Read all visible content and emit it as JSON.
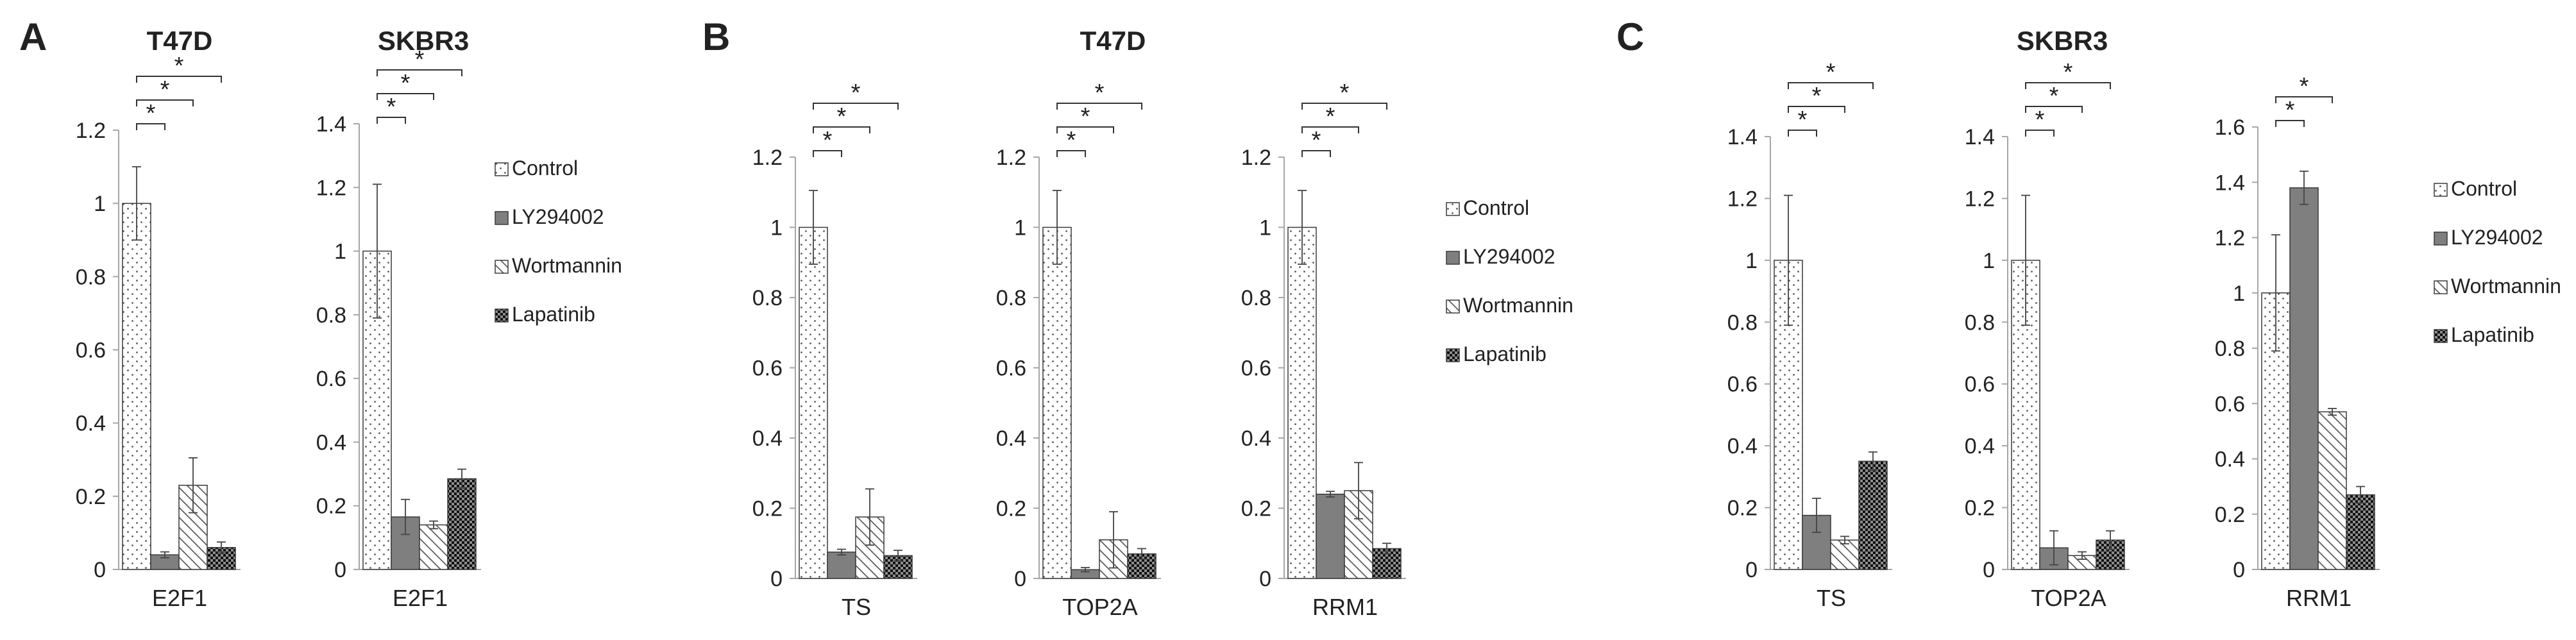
{
  "colors": {
    "axis": "#a6a6a6",
    "bar_outline": "#3a3a3a",
    "dots": "#595959",
    "ly294002": "#7f7f7f",
    "hatch": "#5a5a5a",
    "lapatinib": "#111111"
  },
  "legend_labels": [
    "Control",
    "LY294002",
    "Wortmannin",
    "Lapatinib"
  ],
  "panels": {
    "A": {
      "letter": "A",
      "titles": [
        "T47D",
        "SKBR3"
      ]
    },
    "B": {
      "letter": "B",
      "titles": [
        "T47D"
      ]
    },
    "C": {
      "letter": "C",
      "titles": [
        "SKBR3"
      ]
    }
  },
  "chart_data": [
    {
      "type": "bar",
      "panel": "A",
      "title": "T47D",
      "xlabel": "E2F1",
      "ylim": [
        0,
        1.2
      ],
      "yticks": [
        "0",
        "0.2",
        "0.4",
        "0.6",
        "0.8",
        "1",
        "1.2"
      ],
      "series": [
        {
          "name": "Control",
          "value": 1.0,
          "error": 0.1
        },
        {
          "name": "LY294002",
          "value": 0.04,
          "error": 0.008
        },
        {
          "name": "Wortmannin",
          "value": 0.23,
          "error": 0.075
        },
        {
          "name": "Lapatinib",
          "value": 0.06,
          "error": 0.015
        }
      ],
      "significance": [
        "*",
        "*",
        "*"
      ]
    },
    {
      "type": "bar",
      "panel": "A",
      "title": "SKBR3",
      "xlabel": "E2F1",
      "ylim": [
        0,
        1.4
      ],
      "yticks": [
        "0",
        "0.2",
        "0.4",
        "0.6",
        "0.8",
        "1",
        "1.2",
        "1.4"
      ],
      "series": [
        {
          "name": "Control",
          "value": 1.0,
          "error": 0.21
        },
        {
          "name": "LY294002",
          "value": 0.165,
          "error": 0.055
        },
        {
          "name": "Wortmannin",
          "value": 0.14,
          "error": 0.012
        },
        {
          "name": "Lapatinib",
          "value": 0.285,
          "error": 0.03
        }
      ],
      "significance": [
        "*",
        "*",
        "*"
      ]
    },
    {
      "type": "bar",
      "panel": "B",
      "xlabel": "TS",
      "ylim": [
        0,
        1.2
      ],
      "yticks": [
        "0",
        "0.2",
        "0.4",
        "0.6",
        "0.8",
        "1",
        "1.2"
      ],
      "series": [
        {
          "name": "Control",
          "value": 1.0,
          "error": 0.105
        },
        {
          "name": "LY294002",
          "value": 0.075,
          "error": 0.008
        },
        {
          "name": "Wortmannin",
          "value": 0.175,
          "error": 0.08
        },
        {
          "name": "Lapatinib",
          "value": 0.065,
          "error": 0.015
        }
      ],
      "significance": [
        "*",
        "*",
        "*"
      ]
    },
    {
      "type": "bar",
      "panel": "B",
      "xlabel": "TOP2A",
      "ylim": [
        0,
        1.2
      ],
      "yticks": [
        "0",
        "0.2",
        "0.4",
        "0.6",
        "0.8",
        "1",
        "1.2"
      ],
      "series": [
        {
          "name": "Control",
          "value": 1.0,
          "error": 0.105
        },
        {
          "name": "LY294002",
          "value": 0.025,
          "error": 0.006
        },
        {
          "name": "Wortmannin",
          "value": 0.11,
          "error": 0.08
        },
        {
          "name": "Lapatinib",
          "value": 0.07,
          "error": 0.015
        }
      ],
      "significance": [
        "*",
        "*",
        "*"
      ]
    },
    {
      "type": "bar",
      "panel": "B",
      "xlabel": "RRM1",
      "ylim": [
        0,
        1.2
      ],
      "yticks": [
        "0",
        "0.2",
        "0.4",
        "0.6",
        "0.8",
        "1",
        "1.2"
      ],
      "series": [
        {
          "name": "Control",
          "value": 1.0,
          "error": 0.105
        },
        {
          "name": "LY294002",
          "value": 0.24,
          "error": 0.008
        },
        {
          "name": "Wortmannin",
          "value": 0.25,
          "error": 0.08
        },
        {
          "name": "Lapatinib",
          "value": 0.085,
          "error": 0.015
        }
      ],
      "significance": [
        "*",
        "*",
        "*"
      ]
    },
    {
      "type": "bar",
      "panel": "C",
      "xlabel": "TS",
      "ylim": [
        0,
        1.4
      ],
      "yticks": [
        "0",
        "0.2",
        "0.4",
        "0.6",
        "0.8",
        "1",
        "1.2",
        "1.4"
      ],
      "series": [
        {
          "name": "Control",
          "value": 1.0,
          "error": 0.21
        },
        {
          "name": "LY294002",
          "value": 0.175,
          "error": 0.055
        },
        {
          "name": "Wortmannin",
          "value": 0.095,
          "error": 0.012
        },
        {
          "name": "Lapatinib",
          "value": 0.35,
          "error": 0.03
        }
      ],
      "significance": [
        "*",
        "*",
        "*"
      ]
    },
    {
      "type": "bar",
      "panel": "C",
      "xlabel": "TOP2A",
      "ylim": [
        0,
        1.4
      ],
      "yticks": [
        "0",
        "0.2",
        "0.4",
        "0.6",
        "0.8",
        "1",
        "1.2",
        "1.4"
      ],
      "series": [
        {
          "name": "Control",
          "value": 1.0,
          "error": 0.21
        },
        {
          "name": "LY294002",
          "value": 0.07,
          "error": 0.055
        },
        {
          "name": "Wortmannin",
          "value": 0.045,
          "error": 0.012
        },
        {
          "name": "Lapatinib",
          "value": 0.095,
          "error": 0.03
        }
      ],
      "significance": [
        "*",
        "*",
        "*"
      ]
    },
    {
      "type": "bar",
      "panel": "C",
      "xlabel": "RRM1",
      "ylim": [
        0,
        1.6
      ],
      "yticks": [
        "0",
        "0.2",
        "0.4",
        "0.6",
        "0.8",
        "1",
        "1.2",
        "1.4",
        "1.6"
      ],
      "series": [
        {
          "name": "Control",
          "value": 1.0,
          "error": 0.21
        },
        {
          "name": "LY294002",
          "value": 1.38,
          "error": 0.06
        },
        {
          "name": "Wortmannin",
          "value": 0.57,
          "error": 0.012
        },
        {
          "name": "Lapatinib",
          "value": 0.27,
          "error": 0.03
        }
      ],
      "significance": [
        "*",
        "*"
      ]
    }
  ]
}
